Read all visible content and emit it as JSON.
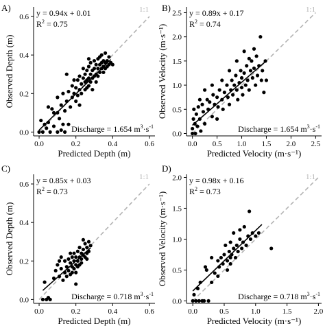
{
  "chart_data": [
    {
      "panel": "A)",
      "type": "scatter",
      "xlabel": "Predicted Depth (m)",
      "ylabel": "Observed Depth (m)",
      "xlim": [
        -0.03,
        0.63
      ],
      "ylim": [
        -0.02,
        0.65
      ],
      "xticks": [
        0,
        0.2,
        0.4,
        0.6
      ],
      "xtick_labels": [
        "0.0",
        "0.2",
        "0.4",
        "0.6"
      ],
      "yticks": [
        0,
        0.2,
        0.4,
        0.6
      ],
      "ytick_labels": [
        "0.0",
        "0.2",
        "0.4",
        "0.6"
      ],
      "equation": "y = 0.94x + 0.01",
      "r2_prefix": "R",
      "r2_sup": "2",
      "r2_value": " = 0.75",
      "one_to_one_label": "1:1",
      "discharge_prefix": "Discharge = 1.654 m",
      "discharge_sup1": "3",
      "discharge_mid": "·s",
      "discharge_sup2": "-1",
      "fit": {
        "slope": 0.94,
        "intercept": 0.01,
        "x_range": [
          0.0,
          0.39
        ]
      },
      "one_to_one_range": [
        0.0,
        0.6
      ],
      "points": [
        [
          0.0,
          0.0
        ],
        [
          0.01,
          0.06
        ],
        [
          0.02,
          0.0
        ],
        [
          0.03,
          0.04
        ],
        [
          0.04,
          0.02
        ],
        [
          0.05,
          0.05
        ],
        [
          0.06,
          0.0
        ],
        [
          0.07,
          0.12
        ],
        [
          0.08,
          0.1
        ],
        [
          0.08,
          0.03
        ],
        [
          0.1,
          0.1
        ],
        [
          0.1,
          0.0
        ],
        [
          0.11,
          0.07
        ],
        [
          0.12,
          0.14
        ],
        [
          0.12,
          0.01
        ],
        [
          0.13,
          0.04
        ],
        [
          0.13,
          0.2
        ],
        [
          0.14,
          0.11
        ],
        [
          0.14,
          0.0
        ],
        [
          0.15,
          0.16
        ],
        [
          0.16,
          0.21
        ],
        [
          0.16,
          0.04
        ],
        [
          0.17,
          0.13
        ],
        [
          0.18,
          0.24
        ],
        [
          0.18,
          0.18
        ],
        [
          0.19,
          0.27
        ],
        [
          0.19,
          0.2
        ],
        [
          0.2,
          0.16
        ],
        [
          0.2,
          0.23
        ],
        [
          0.21,
          0.19
        ],
        [
          0.21,
          0.27
        ],
        [
          0.22,
          0.22
        ],
        [
          0.22,
          0.29
        ],
        [
          0.22,
          0.14
        ],
        [
          0.23,
          0.25
        ],
        [
          0.23,
          0.2
        ],
        [
          0.24,
          0.28
        ],
        [
          0.24,
          0.33
        ],
        [
          0.25,
          0.22
        ],
        [
          0.25,
          0.26
        ],
        [
          0.25,
          0.3
        ],
        [
          0.26,
          0.27
        ],
        [
          0.26,
          0.23
        ],
        [
          0.26,
          0.32
        ],
        [
          0.27,
          0.28
        ],
        [
          0.27,
          0.24
        ],
        [
          0.27,
          0.34
        ],
        [
          0.28,
          0.3
        ],
        [
          0.28,
          0.26
        ],
        [
          0.28,
          0.36
        ],
        [
          0.29,
          0.32
        ],
        [
          0.29,
          0.28
        ],
        [
          0.29,
          0.22
        ],
        [
          0.3,
          0.33
        ],
        [
          0.3,
          0.29
        ],
        [
          0.3,
          0.37
        ],
        [
          0.31,
          0.3
        ],
        [
          0.31,
          0.35
        ],
        [
          0.31,
          0.26
        ],
        [
          0.32,
          0.33
        ],
        [
          0.32,
          0.38
        ],
        [
          0.32,
          0.29
        ],
        [
          0.33,
          0.35
        ],
        [
          0.33,
          0.31
        ],
        [
          0.33,
          0.39
        ],
        [
          0.34,
          0.36
        ],
        [
          0.34,
          0.33
        ],
        [
          0.34,
          0.4
        ],
        [
          0.35,
          0.37
        ],
        [
          0.35,
          0.34
        ],
        [
          0.35,
          0.31
        ],
        [
          0.36,
          0.36
        ],
        [
          0.36,
          0.41
        ],
        [
          0.36,
          0.33
        ],
        [
          0.37,
          0.37
        ],
        [
          0.37,
          0.34
        ],
        [
          0.38,
          0.35
        ],
        [
          0.38,
          0.39
        ],
        [
          0.39,
          0.36
        ],
        [
          0.4,
          0.35
        ],
        [
          0.27,
          0.38
        ],
        [
          0.15,
          0.3
        ],
        [
          0.1,
          0.18
        ],
        [
          0.05,
          0.13
        ]
      ]
    },
    {
      "panel": "B)",
      "type": "scatter",
      "xlabel": "Predicted Velocity (m·s⁻¹)",
      "ylabel": "Observed Velocity (m·s⁻¹)",
      "xlim": [
        -0.12,
        2.62
      ],
      "ylim": [
        -0.05,
        2.62
      ],
      "xticks": [
        0,
        0.5,
        1,
        1.5,
        2,
        2.5
      ],
      "xtick_labels": [
        "0.0",
        "0.5",
        "1.0",
        "1.5",
        "2.0",
        "2.5"
      ],
      "yticks": [
        0,
        0.5,
        1,
        1.5,
        2,
        2.5
      ],
      "ytick_labels": [
        "0.0",
        "0.5",
        "1.0",
        "1.5",
        "2.0",
        "2.5"
      ],
      "equation": "y = 0.89x + 0.17",
      "r2_prefix": "R",
      "r2_sup": "2",
      "r2_value": " = 0.74",
      "one_to_one_label": "1:1",
      "discharge_prefix": "Discharge = 1.654 m",
      "discharge_sup1": "3",
      "discharge_mid": "·s",
      "discharge_sup2": "-1",
      "fit": {
        "slope": 0.89,
        "intercept": 0.17,
        "x_range": [
          0.0,
          1.5
        ]
      },
      "one_to_one_range": [
        0.0,
        2.5
      ],
      "points": [
        [
          0.0,
          0.0
        ],
        [
          0.0,
          0.1
        ],
        [
          0.02,
          0.3
        ],
        [
          0.03,
          0.5
        ],
        [
          0.05,
          0.2
        ],
        [
          0.06,
          0.0
        ],
        [
          0.08,
          0.4
        ],
        [
          0.1,
          0.15
        ],
        [
          0.12,
          0.55
        ],
        [
          0.15,
          0.3
        ],
        [
          0.17,
          0.05
        ],
        [
          0.2,
          0.6
        ],
        [
          0.22,
          0.45
        ],
        [
          0.25,
          0.2
        ],
        [
          0.3,
          0.7
        ],
        [
          0.32,
          0.5
        ],
        [
          0.35,
          0.65
        ],
        [
          0.4,
          0.35
        ],
        [
          0.42,
          0.8
        ],
        [
          0.45,
          0.6
        ],
        [
          0.5,
          0.75
        ],
        [
          0.52,
          0.55
        ],
        [
          0.55,
          0.9
        ],
        [
          0.6,
          0.7
        ],
        [
          0.62,
          0.5
        ],
        [
          0.65,
          0.85
        ],
        [
          0.7,
          1.0
        ],
        [
          0.72,
          0.75
        ],
        [
          0.75,
          0.6
        ],
        [
          0.78,
          0.9
        ],
        [
          0.8,
          1.1
        ],
        [
          0.82,
          0.8
        ],
        [
          0.85,
          1.0
        ],
        [
          0.88,
          1.2
        ],
        [
          0.9,
          0.9
        ],
        [
          0.92,
          0.7
        ],
        [
          0.95,
          1.05
        ],
        [
          0.98,
          1.3
        ],
        [
          1.0,
          0.95
        ],
        [
          1.0,
          1.15
        ],
        [
          1.02,
          0.8
        ],
        [
          1.05,
          1.25
        ],
        [
          1.08,
          1.0
        ],
        [
          1.1,
          1.4
        ],
        [
          1.12,
          1.1
        ],
        [
          1.15,
          0.9
        ],
        [
          1.18,
          1.3
        ],
        [
          1.2,
          1.5
        ],
        [
          1.22,
          1.15
        ],
        [
          1.25,
          1.35
        ],
        [
          1.28,
          1.0
        ],
        [
          1.3,
          1.6
        ],
        [
          1.32,
          1.2
        ],
        [
          1.35,
          1.4
        ],
        [
          1.38,
          2.0
        ],
        [
          1.4,
          1.1
        ],
        [
          1.42,
          1.3
        ],
        [
          1.45,
          0.85
        ],
        [
          1.48,
          1.5
        ],
        [
          1.5,
          1.1
        ],
        [
          0.6,
          1.1
        ],
        [
          0.4,
          1.0
        ],
        [
          0.25,
          0.9
        ],
        [
          0.9,
          1.5
        ],
        [
          1.05,
          1.7
        ],
        [
          0.75,
          1.3
        ],
        [
          0.5,
          0.3
        ],
        [
          0.15,
          0.7
        ],
        [
          1.25,
          1.75
        ],
        [
          1.15,
          1.55
        ]
      ]
    },
    {
      "panel": "C)",
      "type": "scatter",
      "xlabel": "Predicted Depth (m)",
      "ylabel": "Observed Depth (m)",
      "xlim": [
        -0.03,
        0.63
      ],
      "ylim": [
        -0.02,
        0.65
      ],
      "xticks": [
        0,
        0.2,
        0.4,
        0.6
      ],
      "xtick_labels": [
        "0.0",
        "0.2",
        "0.4",
        "0.6"
      ],
      "yticks": [
        0,
        0.2,
        0.4,
        0.6
      ],
      "ytick_labels": [
        "0.0",
        "0.2",
        "0.4",
        "0.6"
      ],
      "equation": "y = 0.85x + 0.03",
      "r2_prefix": "R",
      "r2_sup": "2",
      "r2_value": " = 0.73",
      "one_to_one_label": "1:1",
      "discharge_prefix": "Discharge = 0.718 m",
      "discharge_sup1": "3",
      "discharge_mid": "·s",
      "discharge_sup2": "-1",
      "fit": {
        "slope": 0.85,
        "intercept": 0.03,
        "x_range": [
          0.02,
          0.28
        ]
      },
      "one_to_one_range": [
        0.0,
        0.6
      ],
      "points": [
        [
          0.02,
          0.0
        ],
        [
          0.03,
          0.09
        ],
        [
          0.04,
          0.0
        ],
        [
          0.05,
          0.01
        ],
        [
          0.06,
          0.0
        ],
        [
          0.08,
          0.11
        ],
        [
          0.09,
          0.15
        ],
        [
          0.1,
          0.18
        ],
        [
          0.11,
          0.12
        ],
        [
          0.12,
          0.16
        ],
        [
          0.12,
          0.22
        ],
        [
          0.13,
          0.1
        ],
        [
          0.14,
          0.14
        ],
        [
          0.14,
          0.2
        ],
        [
          0.15,
          0.17
        ],
        [
          0.15,
          0.12
        ],
        [
          0.16,
          0.21
        ],
        [
          0.16,
          0.15
        ],
        [
          0.17,
          0.13
        ],
        [
          0.17,
          0.19
        ],
        [
          0.18,
          0.17
        ],
        [
          0.18,
          0.22
        ],
        [
          0.18,
          0.14
        ],
        [
          0.19,
          0.2
        ],
        [
          0.19,
          0.16
        ],
        [
          0.19,
          0.24
        ],
        [
          0.2,
          0.18
        ],
        [
          0.2,
          0.22
        ],
        [
          0.2,
          0.14
        ],
        [
          0.21,
          0.2
        ],
        [
          0.21,
          0.17
        ],
        [
          0.21,
          0.25
        ],
        [
          0.22,
          0.22
        ],
        [
          0.22,
          0.18
        ],
        [
          0.22,
          0.27
        ],
        [
          0.23,
          0.21
        ],
        [
          0.23,
          0.24
        ],
        [
          0.23,
          0.19
        ],
        [
          0.24,
          0.23
        ],
        [
          0.24,
          0.26
        ],
        [
          0.25,
          0.22
        ],
        [
          0.25,
          0.29
        ],
        [
          0.26,
          0.24
        ],
        [
          0.26,
          0.27
        ],
        [
          0.27,
          0.25
        ],
        [
          0.27,
          0.3
        ],
        [
          0.28,
          0.28
        ],
        [
          0.2,
          0.08
        ],
        [
          0.17,
          0.24
        ],
        [
          0.24,
          0.31
        ],
        [
          0.11,
          0.2
        ],
        [
          0.26,
          0.21
        ]
      ]
    },
    {
      "panel": "D)",
      "type": "scatter",
      "xlabel": "Predicted Velocity (m·s⁻¹)",
      "ylabel": "Observed Velocity (m·s⁻¹)",
      "xlim": [
        -0.1,
        2.05
      ],
      "ylim": [
        -0.04,
        2.05
      ],
      "xticks": [
        0,
        0.5,
        1,
        1.5,
        2
      ],
      "xtick_labels": [
        "0.0",
        "0.5",
        "1.0",
        "1.5",
        "2.0"
      ],
      "yticks": [
        0,
        0.5,
        1,
        1.5,
        2
      ],
      "ytick_labels": [
        "0.0",
        "0.5",
        "1.0",
        "1.5",
        "2.0"
      ],
      "equation": "y = 0.98x + 0.16",
      "r2_prefix": "R",
      "r2_sup": "2",
      "r2_value": " = 0.73",
      "one_to_one_label": "1:1",
      "discharge_prefix": "Discharge = 0.718 m",
      "discharge_sup1": "3",
      "discharge_mid": "·s",
      "discharge_sup2": "-1",
      "fit": {
        "slope": 0.98,
        "intercept": 0.16,
        "x_range": [
          0.0,
          1.1
        ]
      },
      "one_to_one_range": [
        0.0,
        2.0
      ],
      "points": [
        [
          0.0,
          0.0
        ],
        [
          0.02,
          0.1
        ],
        [
          0.05,
          0.0
        ],
        [
          0.08,
          0.2
        ],
        [
          0.1,
          0.0
        ],
        [
          0.12,
          0.3
        ],
        [
          0.15,
          0.0
        ],
        [
          0.18,
          0.0
        ],
        [
          0.2,
          0.55
        ],
        [
          0.22,
          0.5
        ],
        [
          0.25,
          0.0
        ],
        [
          0.3,
          0.3
        ],
        [
          0.35,
          0.45
        ],
        [
          0.4,
          0.65
        ],
        [
          0.42,
          0.55
        ],
        [
          0.45,
          0.7
        ],
        [
          0.48,
          0.6
        ],
        [
          0.5,
          0.75
        ],
        [
          0.52,
          0.9
        ],
        [
          0.55,
          0.65
        ],
        [
          0.58,
          0.8
        ],
        [
          0.6,
          0.7
        ],
        [
          0.6,
          0.95
        ],
        [
          0.62,
          0.75
        ],
        [
          0.65,
          1.1
        ],
        [
          0.65,
          0.85
        ],
        [
          0.68,
          0.7
        ],
        [
          0.7,
          0.9
        ],
        [
          0.72,
          0.8
        ],
        [
          0.75,
          1.0
        ],
        [
          0.78,
          0.85
        ],
        [
          0.8,
          0.95
        ],
        [
          0.82,
          1.2
        ],
        [
          0.85,
          0.9
        ],
        [
          0.88,
          1.05
        ],
        [
          0.9,
          1.45
        ],
        [
          0.92,
          1.0
        ],
        [
          0.95,
          1.1
        ],
        [
          1.0,
          1.05
        ],
        [
          1.05,
          1.1
        ],
        [
          1.25,
          0.85
        ],
        [
          0.3,
          0.7
        ],
        [
          0.55,
          0.5
        ],
        [
          0.75,
          1.15
        ],
        [
          0.6,
          0.6
        ],
        [
          0.4,
          0.4
        ]
      ]
    }
  ]
}
